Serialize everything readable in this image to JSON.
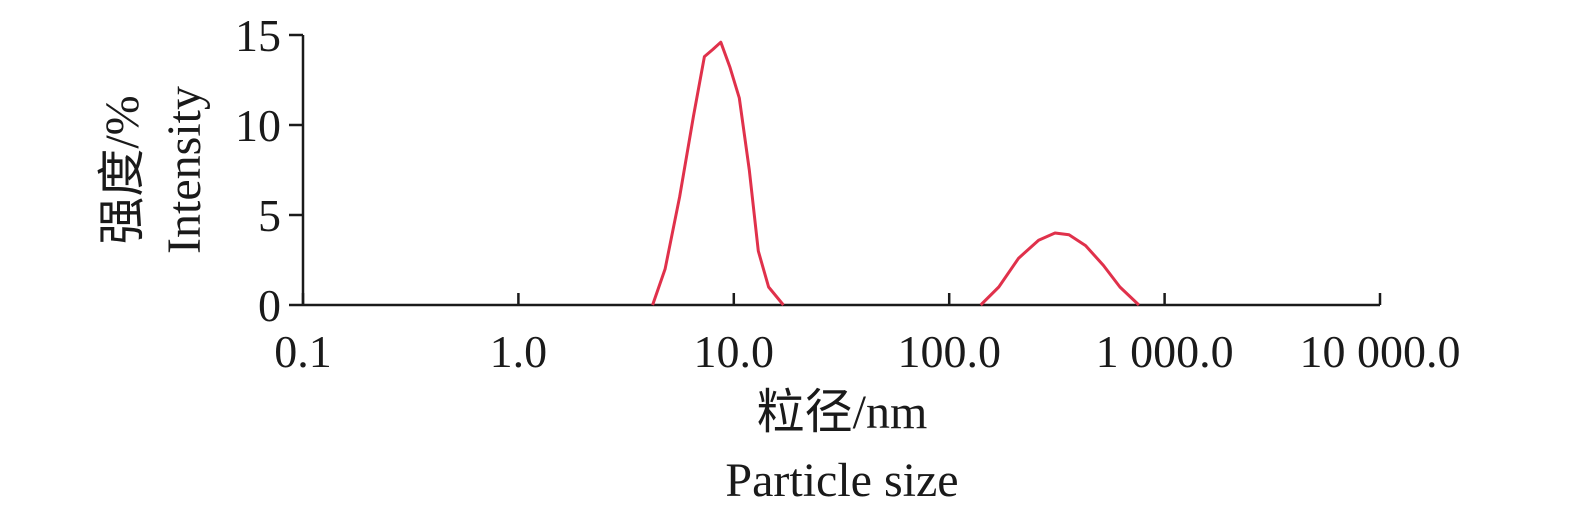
{
  "chart_data": {
    "type": "line",
    "title": "",
    "x_scale": "log",
    "xlim": [
      0.1,
      10000
    ],
    "ylim": [
      0,
      15
    ],
    "grid": false,
    "legend": "none",
    "xlabel": [
      "粒径/nm",
      "Particle size"
    ],
    "ylabel": [
      "强度/%",
      "Intensity"
    ],
    "x_ticks": [
      0.1,
      1,
      10,
      100,
      1000,
      10000
    ],
    "x_tick_labels": [
      "0.1",
      "1.0",
      "10.0",
      "100.0",
      "1 000.0",
      "10 000.0"
    ],
    "y_ticks": [
      0,
      5,
      10,
      15
    ],
    "y_tick_labels": [
      "0",
      "5",
      "10",
      "15"
    ],
    "series": [
      {
        "color": "#e0314b",
        "points": [
          [
            4.2,
            0
          ],
          [
            4.8,
            2
          ],
          [
            5.6,
            6
          ],
          [
            6.5,
            10.5
          ],
          [
            7.3,
            13.8
          ],
          [
            8.0,
            14.2
          ],
          [
            8.7,
            14.6
          ],
          [
            9.6,
            13.2
          ],
          [
            10.6,
            11.5
          ],
          [
            11.8,
            7.5
          ],
          [
            13.0,
            3.0
          ],
          [
            14.5,
            1.0
          ],
          [
            17.0,
            0
          ],
          [
            140,
            0
          ],
          [
            170,
            1.0
          ],
          [
            210,
            2.6
          ],
          [
            260,
            3.6
          ],
          [
            310,
            4.0
          ],
          [
            360,
            3.9
          ],
          [
            430,
            3.3
          ],
          [
            520,
            2.2
          ],
          [
            620,
            1.0
          ],
          [
            760,
            0
          ]
        ]
      }
    ]
  }
}
